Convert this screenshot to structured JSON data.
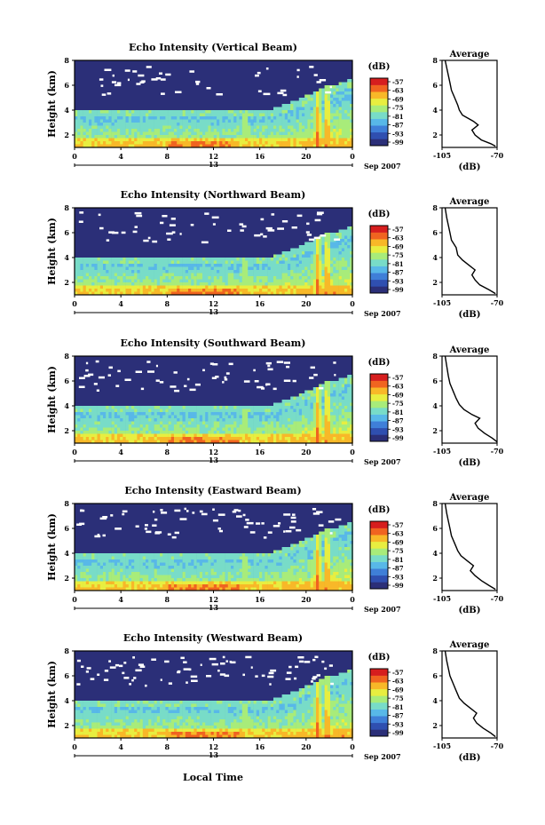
{
  "figure": {
    "date_label": "Sep 2007",
    "xlabel": "Local Time",
    "colorbar_unit": "(dB)",
    "colorbar_ticks": [
      "-57",
      "-63",
      "-69",
      "-75",
      "-81",
      "-87",
      "-93",
      "-99"
    ],
    "colorbar_colors": [
      "#2b2f78",
      "#2f4fb0",
      "#3f7fd8",
      "#58b8e8",
      "#78dcc8",
      "#a8ec7a",
      "#e8ee40",
      "#f8b828",
      "#f06420",
      "#d61e1e"
    ],
    "background_color": "#2b2f78",
    "no_data_color": "#ffffff"
  },
  "chart_data": [
    {
      "type": "heatmap",
      "title": "Echo Intensity (Vertical Beam)",
      "ylabel": "Height (km)",
      "x_ticks": [
        "0",
        "4",
        "8",
        "12",
        "16",
        "20",
        "0"
      ],
      "x_day_label": "13",
      "y_ticks": [
        "2",
        "4",
        "6",
        "8"
      ],
      "xlim": [
        0,
        24
      ],
      "ylim": [
        1,
        8
      ],
      "profile": {
        "title": "Average",
        "xlabel": "(dB)",
        "x_ticks": [
          "-105",
          "-70"
        ],
        "y_ticks": [
          "2",
          "4",
          "6",
          "8"
        ],
        "xlim": [
          -105,
          -70
        ],
        "ylim": [
          1,
          8
        ],
        "points": [
          [
            -71,
            1.1
          ],
          [
            -74,
            1.3
          ],
          [
            -80,
            1.6
          ],
          [
            -84,
            2.0
          ],
          [
            -86,
            2.4
          ],
          [
            -82,
            2.8
          ],
          [
            -85,
            3.1
          ],
          [
            -92,
            3.6
          ],
          [
            -94,
            4.0
          ],
          [
            -95,
            4.4
          ],
          [
            -97,
            5.0
          ],
          [
            -99,
            5.6
          ],
          [
            -100,
            6.2
          ],
          [
            -101,
            6.8
          ],
          [
            -102,
            7.4
          ],
          [
            -103,
            8.0
          ]
        ]
      }
    },
    {
      "type": "heatmap",
      "title": "Echo Intensity (Northward Beam)",
      "ylabel": "Height (km)",
      "x_ticks": [
        "0",
        "4",
        "8",
        "12",
        "16",
        "20",
        "0"
      ],
      "x_day_label": "13",
      "y_ticks": [
        "2",
        "4",
        "6",
        "8"
      ],
      "xlim": [
        0,
        24
      ],
      "ylim": [
        1,
        8
      ],
      "profile": {
        "title": "Average",
        "xlabel": "(dB)",
        "x_ticks": [
          "-105",
          "-70"
        ],
        "y_ticks": [
          "2",
          "4",
          "6",
          "8"
        ],
        "xlim": [
          -105,
          -70
        ],
        "ylim": [
          1,
          8
        ],
        "points": [
          [
            -71,
            1.1
          ],
          [
            -75,
            1.4
          ],
          [
            -81,
            1.8
          ],
          [
            -84,
            2.2
          ],
          [
            -86,
            2.6
          ],
          [
            -84,
            3.0
          ],
          [
            -88,
            3.4
          ],
          [
            -92,
            3.8
          ],
          [
            -95,
            4.2
          ],
          [
            -96,
            4.8
          ],
          [
            -99,
            5.4
          ],
          [
            -100,
            6.0
          ],
          [
            -101,
            6.6
          ],
          [
            -102,
            7.2
          ],
          [
            -103,
            8.0
          ]
        ]
      }
    },
    {
      "type": "heatmap",
      "title": "Echo Intensity (Southward Beam)",
      "ylabel": "Height (km)",
      "x_ticks": [
        "0",
        "4",
        "8",
        "12",
        "16",
        "20",
        "0"
      ],
      "x_day_label": "13",
      "y_ticks": [
        "2",
        "4",
        "6",
        "8"
      ],
      "xlim": [
        0,
        24
      ],
      "ylim": [
        1,
        8
      ],
      "profile": {
        "title": "Average",
        "xlabel": "(dB)",
        "x_ticks": [
          "-105",
          "-70"
        ],
        "y_ticks": [
          "2",
          "4",
          "6",
          "8"
        ],
        "xlim": [
          -105,
          -70
        ],
        "ylim": [
          1,
          8
        ],
        "points": [
          [
            -70,
            1.1
          ],
          [
            -73,
            1.4
          ],
          [
            -78,
            1.8
          ],
          [
            -82,
            2.2
          ],
          [
            -84,
            2.6
          ],
          [
            -81,
            3.0
          ],
          [
            -86,
            3.3
          ],
          [
            -91,
            3.7
          ],
          [
            -94,
            4.1
          ],
          [
            -96,
            4.6
          ],
          [
            -98,
            5.2
          ],
          [
            -100,
            5.8
          ],
          [
            -101,
            6.4
          ],
          [
            -102,
            7.2
          ],
          [
            -103,
            8.0
          ]
        ]
      }
    },
    {
      "type": "heatmap",
      "title": "Echo Intensity (Eastward Beam)",
      "ylabel": "Height (km)",
      "x_ticks": [
        "0",
        "4",
        "8",
        "12",
        "16",
        "20",
        "0"
      ],
      "x_day_label": "13",
      "y_ticks": [
        "2",
        "4",
        "6",
        "8"
      ],
      "xlim": [
        0,
        24
      ],
      "ylim": [
        1,
        8
      ],
      "profile": {
        "title": "Average",
        "xlabel": "(dB)",
        "x_ticks": [
          "-105",
          "-70"
        ],
        "y_ticks": [
          "2",
          "4",
          "6",
          "8"
        ],
        "xlim": [
          -105,
          -70
        ],
        "ylim": [
          1,
          8
        ],
        "points": [
          [
            -71,
            1.1
          ],
          [
            -75,
            1.4
          ],
          [
            -80,
            1.8
          ],
          [
            -84,
            2.2
          ],
          [
            -87,
            2.6
          ],
          [
            -85,
            3.0
          ],
          [
            -89,
            3.4
          ],
          [
            -93,
            3.8
          ],
          [
            -95,
            4.2
          ],
          [
            -97,
            4.8
          ],
          [
            -99,
            5.4
          ],
          [
            -100,
            6.0
          ],
          [
            -101,
            6.6
          ],
          [
            -102,
            7.2
          ],
          [
            -103,
            8.0
          ]
        ]
      }
    },
    {
      "type": "heatmap",
      "title": "Echo Intensity (Westward Beam)",
      "ylabel": "Height (km)",
      "x_ticks": [
        "0",
        "4",
        "8",
        "12",
        "16",
        "20",
        "0"
      ],
      "x_day_label": "13",
      "y_ticks": [
        "2",
        "4",
        "6",
        "8"
      ],
      "xlim": [
        0,
        24
      ],
      "ylim": [
        1,
        8
      ],
      "profile": {
        "title": "Average",
        "xlabel": "(dB)",
        "x_ticks": [
          "-105",
          "-70"
        ],
        "y_ticks": [
          "2",
          "4",
          "6",
          "8"
        ],
        "xlim": [
          -105,
          -70
        ],
        "ylim": [
          1,
          8
        ],
        "points": [
          [
            -71,
            1.1
          ],
          [
            -74,
            1.4
          ],
          [
            -79,
            1.8
          ],
          [
            -83,
            2.2
          ],
          [
            -85,
            2.6
          ],
          [
            -83,
            3.0
          ],
          [
            -87,
            3.4
          ],
          [
            -91,
            3.8
          ],
          [
            -94,
            4.2
          ],
          [
            -96,
            4.8
          ],
          [
            -98,
            5.4
          ],
          [
            -100,
            6.0
          ],
          [
            -101,
            6.6
          ],
          [
            -102,
            7.2
          ],
          [
            -103,
            8.0
          ]
        ]
      }
    }
  ]
}
